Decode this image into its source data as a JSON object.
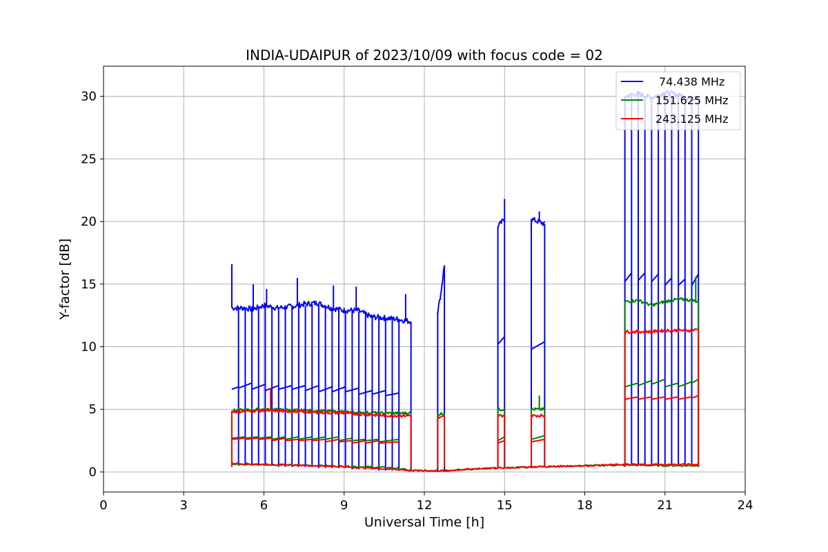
{
  "chart_data": {
    "type": "line",
    "title": "INDIA-UDAIPUR of 2023/10/09 with focus code = 02",
    "xlabel": "Universal Time [h]",
    "ylabel": "Y-factor [dB]",
    "xlim": [
      0,
      24
    ],
    "ylim": [
      -1.6,
      32.4
    ],
    "xticks": [
      0,
      3,
      6,
      9,
      12,
      15,
      18,
      21,
      24
    ],
    "yticks": [
      0,
      5,
      10,
      15,
      20,
      25,
      30
    ],
    "grid": true,
    "legend_position": "top-right",
    "series": [
      {
        "name": "74.438 MHz",
        "color": "#0000ff",
        "segments": [
          {
            "x": [
              4.8,
              5.2,
              5.6,
              6.0,
              6.5,
              7.0,
              7.5,
              8.0,
              8.5,
              9.0,
              9.5,
              10.0,
              10.5,
              11.0,
              11.5
            ],
            "y": [
              13.1,
              13.1,
              13.0,
              13.3,
              13.1,
              13.2,
              13.4,
              13.5,
              13.1,
              12.9,
              12.9,
              12.4,
              12.3,
              12.2,
              12.0
            ]
          },
          {
            "x": [
              12.5,
              12.6,
              12.75
            ],
            "y": [
              12.8,
              14.0,
              16.5
            ]
          },
          {
            "x": [
              14.75,
              15.0
            ],
            "y": [
              19.6,
              20.2
            ]
          },
          {
            "x": [
              16.0,
              16.5
            ],
            "y": [
              20.2,
              19.8
            ]
          },
          {
            "x": [
              19.5,
              20.0,
              20.5,
              21.0,
              21.5,
              22.0,
              22.25
            ],
            "y": [
              30.0,
              30.2,
              29.9,
              30.3,
              30.1,
              29.8,
              30.0
            ]
          }
        ],
        "spikes": [
          {
            "x": 4.8,
            "y": 16.6
          },
          {
            "x": 5.6,
            "y": 15.0
          },
          {
            "x": 6.1,
            "y": 14.6
          },
          {
            "x": 7.25,
            "y": 15.5
          },
          {
            "x": 8.6,
            "y": 14.9
          },
          {
            "x": 9.45,
            "y": 14.8
          },
          {
            "x": 11.3,
            "y": 14.2
          },
          {
            "x": 15.0,
            "y": 21.8
          },
          {
            "x": 16.3,
            "y": 20.8
          }
        ],
        "dropouts": {
          "x": [
            5.05,
            5.3,
            5.55,
            5.8,
            6.05,
            6.3,
            6.55,
            6.8,
            7.05,
            7.3,
            7.55,
            7.8,
            8.05,
            8.3,
            8.55,
            8.8,
            9.05,
            9.3,
            9.55,
            9.8,
            10.05,
            10.3,
            10.55,
            10.8,
            11.05,
            11.5,
            12.5,
            12.75,
            14.75,
            15.0,
            16.0,
            16.5,
            19.5,
            19.75,
            20.0,
            20.25,
            20.5,
            20.75,
            21.0,
            21.25,
            21.5,
            21.75,
            22.0,
            22.25
          ],
          "high": [
            13.1,
            13.1,
            13.0,
            13.1,
            13.3,
            13.2,
            13.1,
            13.2,
            13.2,
            13.4,
            13.3,
            13.4,
            13.5,
            13.3,
            13.1,
            13.0,
            12.9,
            12.9,
            12.8,
            12.8,
            12.4,
            12.4,
            12.3,
            12.3,
            12.2,
            12.0,
            12.8,
            16.5,
            19.6,
            20.2,
            20.2,
            19.8,
            30.0,
            30.1,
            30.2,
            30.0,
            29.9,
            30.1,
            30.3,
            30.0,
            30.1,
            29.9,
            29.8,
            30.0
          ],
          "low": [
            0.5,
            0.5,
            0.5,
            0.5,
            0.5,
            0.5,
            0.4,
            0.4,
            0.4,
            0.4,
            0.4,
            0.4,
            0.3,
            0.3,
            0.3,
            0.3,
            0.3,
            0.2,
            0.2,
            0.2,
            0.2,
            0.1,
            0.1,
            0.1,
            0.1,
            0.1,
            0.1,
            0.1,
            0.3,
            0.3,
            0.4,
            0.4,
            0.6,
            0.6,
            0.6,
            0.6,
            0.6,
            0.6,
            0.6,
            0.6,
            0.6,
            0.6,
            0.6,
            0.6
          ]
        },
        "staircase": [
          {
            "x": [
              4.8,
              5.05
            ],
            "y": [
              6.6,
              6.8
            ]
          },
          {
            "x": [
              5.05,
              5.55
            ],
            "y": [
              6.7,
              7.1
            ]
          },
          {
            "x": [
              5.55,
              6.05
            ],
            "y": [
              6.6,
              7.0
            ]
          },
          {
            "x": [
              6.05,
              6.55
            ],
            "y": [
              6.5,
              6.9
            ]
          },
          {
            "x": [
              6.55,
              7.05
            ],
            "y": [
              6.6,
              6.9
            ]
          },
          {
            "x": [
              7.05,
              7.55
            ],
            "y": [
              6.6,
              6.9
            ]
          },
          {
            "x": [
              7.55,
              8.05
            ],
            "y": [
              6.5,
              6.9
            ]
          },
          {
            "x": [
              8.05,
              8.55
            ],
            "y": [
              6.4,
              6.8
            ]
          },
          {
            "x": [
              8.55,
              9.05
            ],
            "y": [
              6.4,
              6.8
            ]
          },
          {
            "x": [
              9.05,
              9.55
            ],
            "y": [
              6.4,
              6.7
            ]
          },
          {
            "x": [
              9.55,
              10.05
            ],
            "y": [
              6.2,
              6.5
            ]
          },
          {
            "x": [
              10.05,
              10.55
            ],
            "y": [
              6.2,
              6.5
            ]
          },
          {
            "x": [
              10.55,
              11.05
            ],
            "y": [
              6.1,
              6.3
            ]
          },
          {
            "x": [
              14.75,
              15.0
            ],
            "y": [
              10.2,
              10.8
            ]
          },
          {
            "x": [
              16.0,
              16.5
            ],
            "y": [
              9.8,
              10.4
            ]
          },
          {
            "x": [
              19.5,
              19.75
            ],
            "y": [
              15.2,
              15.9
            ]
          },
          {
            "x": [
              20.0,
              20.25
            ],
            "y": [
              15.3,
              15.9
            ]
          },
          {
            "x": [
              20.5,
              20.75
            ],
            "y": [
              15.2,
              15.8
            ]
          },
          {
            "x": [
              21.0,
              21.25
            ],
            "y": [
              14.9,
              15.5
            ]
          },
          {
            "x": [
              21.5,
              21.75
            ],
            "y": [
              14.9,
              15.4
            ]
          },
          {
            "x": [
              22.0,
              22.25
            ],
            "y": [
              14.9,
              15.8
            ]
          }
        ]
      },
      {
        "name": "151.625 MHz",
        "color": "#008000",
        "segments": [
          {
            "x": [
              4.8,
              6.0,
              7.5,
              9.0,
              10.5,
              11.5
            ],
            "y": [
              4.9,
              5.0,
              4.9,
              4.8,
              4.7,
              4.7
            ]
          },
          {
            "x": [
              12.5,
              12.75
            ],
            "y": [
              4.6,
              4.7
            ]
          },
          {
            "x": [
              14.75,
              15.0
            ],
            "y": [
              5.0,
              5.0
            ]
          },
          {
            "x": [
              16.0,
              16.5
            ],
            "y": [
              5.0,
              5.0
            ]
          },
          {
            "x": [
              19.5,
              20.0,
              20.5,
              21.0,
              21.5,
              22.0,
              22.25
            ],
            "y": [
              13.6,
              13.7,
              13.3,
              13.6,
              13.8,
              13.7,
              13.6
            ]
          }
        ],
        "baseline": {
          "x": [
            4.8,
            6.0,
            8.0,
            10.0,
            11.0,
            11.5,
            12.5,
            12.75,
            14.0,
            16.0,
            18.0,
            19.5,
            21.0,
            22.25
          ],
          "y": [
            0.6,
            0.6,
            0.5,
            0.4,
            0.3,
            0.1,
            0.1,
            0.1,
            0.25,
            0.4,
            0.5,
            0.55,
            0.5,
            0.5
          ]
        },
        "staircase": [
          {
            "x": [
              4.8,
              5.3
            ],
            "y": [
              2.7,
              2.8
            ]
          },
          {
            "x": [
              5.3,
              5.8
            ],
            "y": [
              2.7,
              2.8
            ]
          },
          {
            "x": [
              5.8,
              6.3
            ],
            "y": [
              2.7,
              2.8
            ]
          },
          {
            "x": [
              6.3,
              6.8
            ],
            "y": [
              2.6,
              2.8
            ]
          },
          {
            "x": [
              6.8,
              7.3
            ],
            "y": [
              2.6,
              2.8
            ]
          },
          {
            "x": [
              7.3,
              7.8
            ],
            "y": [
              2.6,
              2.8
            ]
          },
          {
            "x": [
              7.8,
              8.3
            ],
            "y": [
              2.6,
              2.8
            ]
          },
          {
            "x": [
              8.3,
              8.8
            ],
            "y": [
              2.6,
              2.8
            ]
          },
          {
            "x": [
              8.8,
              9.3
            ],
            "y": [
              2.5,
              2.7
            ]
          },
          {
            "x": [
              9.3,
              9.8
            ],
            "y": [
              2.5,
              2.6
            ]
          },
          {
            "x": [
              9.8,
              10.3
            ],
            "y": [
              2.5,
              2.6
            ]
          },
          {
            "x": [
              10.3,
              11.05
            ],
            "y": [
              2.4,
              2.6
            ]
          },
          {
            "x": [
              14.75,
              15.0
            ],
            "y": [
              2.5,
              2.8
            ]
          },
          {
            "x": [
              16.0,
              16.5
            ],
            "y": [
              2.6,
              2.9
            ]
          },
          {
            "x": [
              19.5,
              20.0
            ],
            "y": [
              6.8,
              7.1
            ]
          },
          {
            "x": [
              20.0,
              20.5
            ],
            "y": [
              6.9,
              7.3
            ]
          },
          {
            "x": [
              20.5,
              21.0
            ],
            "y": [
              7.0,
              7.4
            ]
          },
          {
            "x": [
              21.0,
              21.5
            ],
            "y": [
              6.8,
              7.1
            ]
          },
          {
            "x": [
              21.5,
              22.0
            ],
            "y": [
              6.8,
              7.2
            ]
          },
          {
            "x": [
              22.0,
              22.25
            ],
            "y": [
              7.1,
              7.4
            ]
          }
        ],
        "spikes": [
          {
            "x": 16.3,
            "y": 6.1
          },
          {
            "x": 22.15,
            "y": 15.6
          }
        ]
      },
      {
        "name": "243.125 MHz",
        "color": "#ff0000",
        "segments": [
          {
            "x": [
              4.8,
              6.0,
              7.5,
              9.0,
              10.5,
              11.5
            ],
            "y": [
              4.8,
              4.9,
              4.8,
              4.7,
              4.5,
              4.5
            ]
          },
          {
            "x": [
              12.5,
              12.75
            ],
            "y": [
              4.3,
              4.4
            ]
          },
          {
            "x": [
              14.75,
              15.0
            ],
            "y": [
              4.5,
              4.5
            ]
          },
          {
            "x": [
              16.0,
              16.5
            ],
            "y": [
              4.5,
              4.5
            ]
          },
          {
            "x": [
              19.5,
              20.0,
              20.5,
              21.0,
              21.5,
              22.0,
              22.25
            ],
            "y": [
              11.2,
              11.2,
              11.2,
              11.3,
              11.3,
              11.3,
              11.4
            ]
          }
        ],
        "baseline": {
          "x": [
            4.8,
            6.0,
            8.0,
            10.0,
            11.0,
            11.5,
            12.5,
            12.75,
            14.0,
            16.0,
            18.0,
            19.5,
            21.0,
            22.25
          ],
          "y": [
            0.7,
            0.6,
            0.5,
            0.3,
            0.2,
            0.1,
            0.1,
            0.1,
            0.25,
            0.4,
            0.5,
            0.6,
            0.6,
            0.6
          ]
        },
        "staircase": [
          {
            "x": [
              4.8,
              5.3
            ],
            "y": [
              2.6,
              2.7
            ]
          },
          {
            "x": [
              5.3,
              5.8
            ],
            "y": [
              2.6,
              2.7
            ]
          },
          {
            "x": [
              5.8,
              6.3
            ],
            "y": [
              2.6,
              2.7
            ]
          },
          {
            "x": [
              6.3,
              6.8
            ],
            "y": [
              2.5,
              2.7
            ]
          },
          {
            "x": [
              6.8,
              7.3
            ],
            "y": [
              2.5,
              2.6
            ]
          },
          {
            "x": [
              7.3,
              7.8
            ],
            "y": [
              2.5,
              2.6
            ]
          },
          {
            "x": [
              7.8,
              8.3
            ],
            "y": [
              2.5,
              2.6
            ]
          },
          {
            "x": [
              8.3,
              8.8
            ],
            "y": [
              2.4,
              2.6
            ]
          },
          {
            "x": [
              8.8,
              9.3
            ],
            "y": [
              2.4,
              2.5
            ]
          },
          {
            "x": [
              9.3,
              9.8
            ],
            "y": [
              2.3,
              2.5
            ]
          },
          {
            "x": [
              9.8,
              10.3
            ],
            "y": [
              2.3,
              2.5
            ]
          },
          {
            "x": [
              10.3,
              11.05
            ],
            "y": [
              2.3,
              2.4
            ]
          },
          {
            "x": [
              14.75,
              15.0
            ],
            "y": [
              2.3,
              2.5
            ]
          },
          {
            "x": [
              16.0,
              16.5
            ],
            "y": [
              2.4,
              2.6
            ]
          },
          {
            "x": [
              19.5,
              20.0
            ],
            "y": [
              5.8,
              6.0
            ]
          },
          {
            "x": [
              20.0,
              20.5
            ],
            "y": [
              5.8,
              6.0
            ]
          },
          {
            "x": [
              20.5,
              21.0
            ],
            "y": [
              5.8,
              6.0
            ]
          },
          {
            "x": [
              21.0,
              21.5
            ],
            "y": [
              5.8,
              6.0
            ]
          },
          {
            "x": [
              21.5,
              22.0
            ],
            "y": [
              5.8,
              6.0
            ]
          },
          {
            "x": [
              22.0,
              22.25
            ],
            "y": [
              5.9,
              6.1
            ]
          }
        ],
        "spikes": [
          {
            "x": 6.25,
            "y": 6.7
          }
        ]
      }
    ]
  }
}
